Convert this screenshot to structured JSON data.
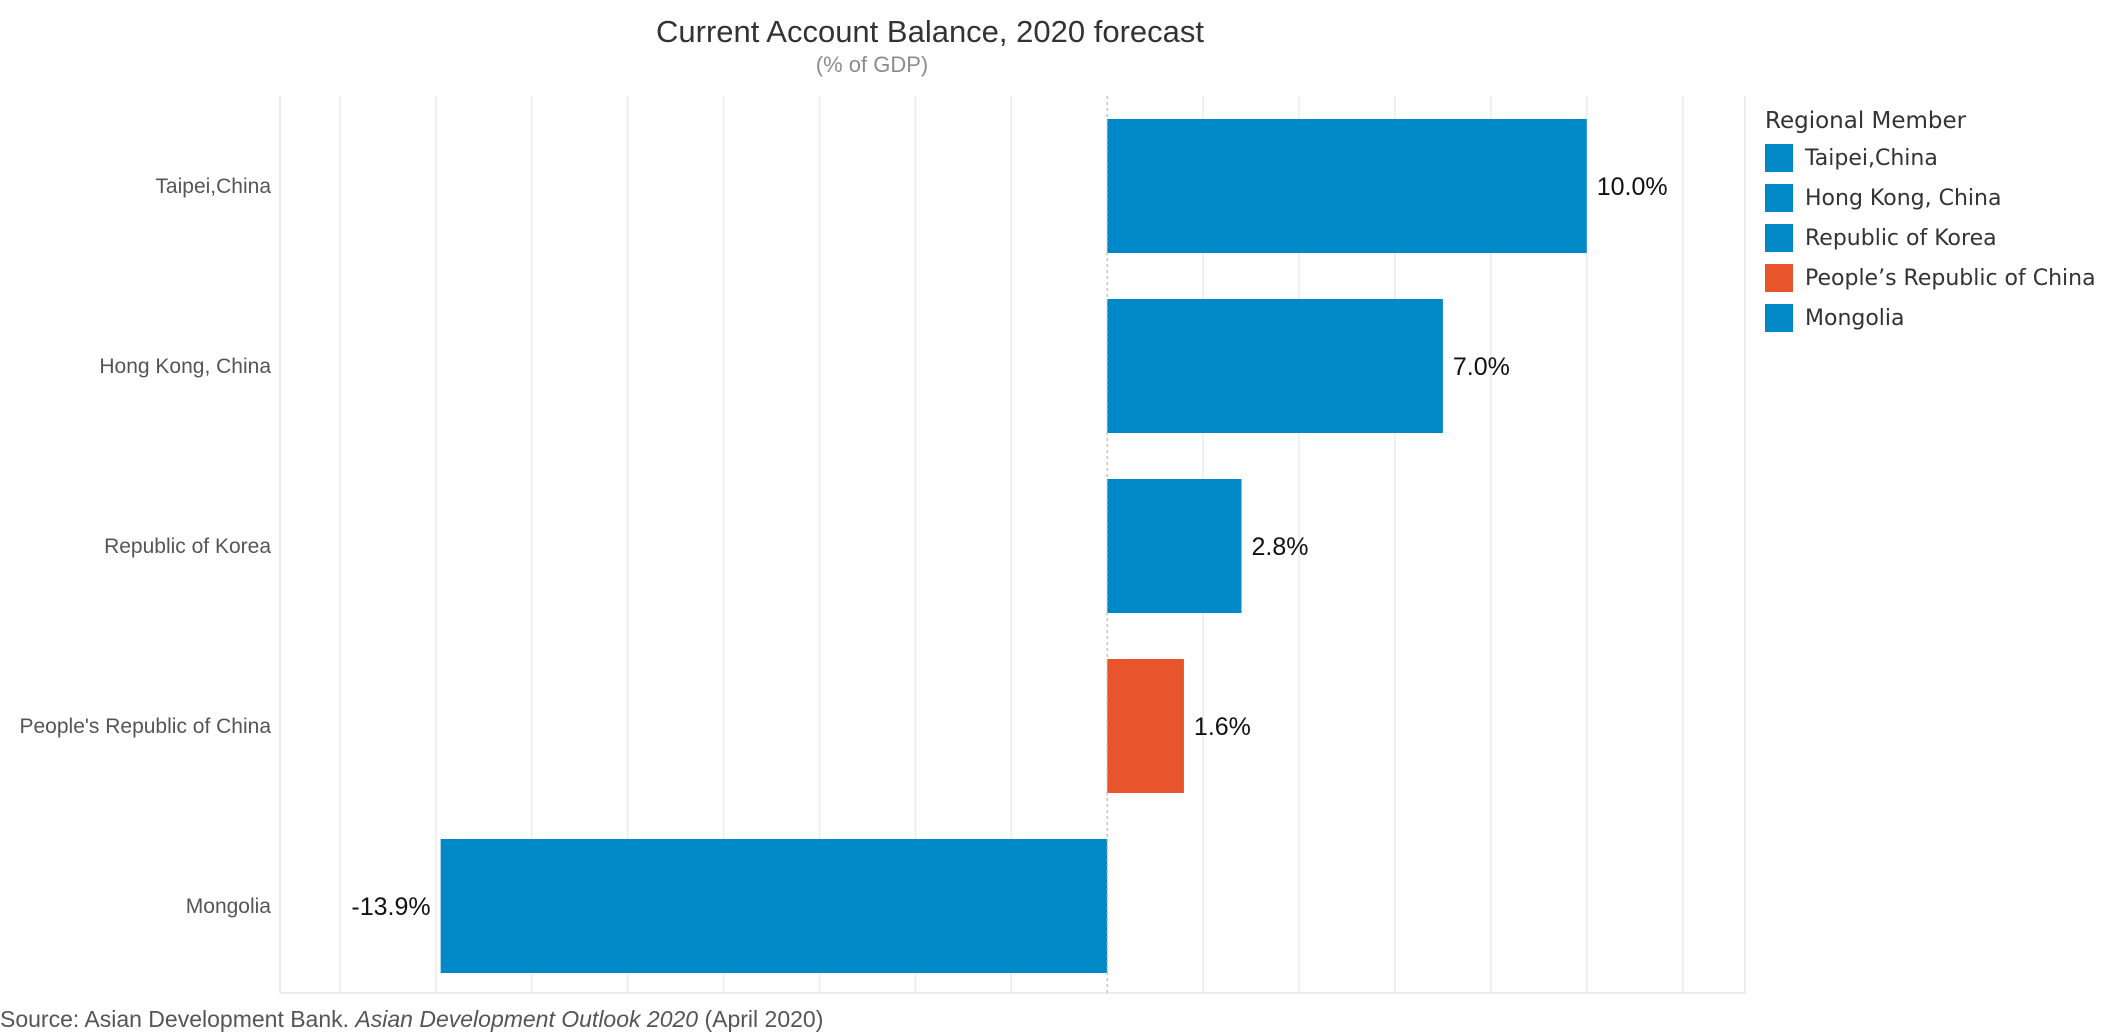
{
  "chart_data": {
    "type": "bar",
    "orientation": "horizontal",
    "title": "Current Account Balance, 2020 forecast",
    "subtitle": "(% of GDP)",
    "categories": [
      "Taipei,China",
      "Hong Kong, China",
      "Republic of Korea",
      "People's Republic of China",
      "Mongolia"
    ],
    "values": [
      10.0,
      7.0,
      2.8,
      1.6,
      -13.9
    ],
    "value_labels": [
      "10.0%",
      "7.0%",
      "2.8%",
      "1.6%",
      "-13.9%"
    ],
    "colors": [
      "#0088c8",
      "#0088c8",
      "#0088c8",
      "#e8542b",
      "#0088c8"
    ],
    "xlim": [
      -17.25,
      13.3
    ],
    "grid": true,
    "legend_position": "right",
    "legend": {
      "title": "Regional Member",
      "items": [
        {
          "label": "Taipei,China",
          "color": "#0088c8"
        },
        {
          "label": "Hong Kong, China",
          "color": "#0088c8"
        },
        {
          "label": "Republic of Korea",
          "color": "#0088c8"
        },
        {
          "label": "People’s Republic of China",
          "color": "#e8542b"
        },
        {
          "label": "Mongolia",
          "color": "#0088c8"
        }
      ]
    }
  },
  "source": {
    "prefix": "Source: Asian Development Bank. ",
    "publication": "Asian Development Outlook 2020",
    "suffix": " (April 2020)"
  }
}
